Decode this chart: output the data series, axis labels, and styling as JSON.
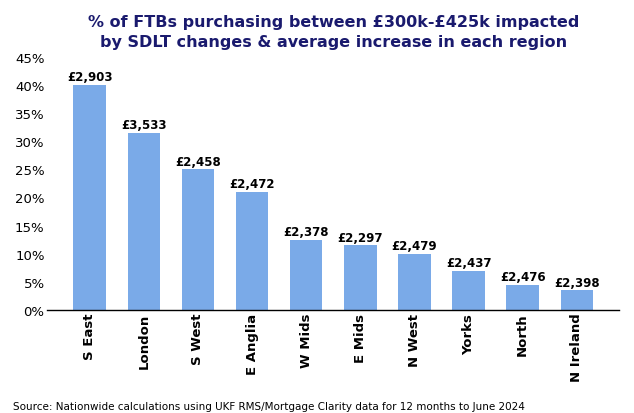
{
  "categories": [
    "S East",
    "London",
    "S West",
    "E Anglia",
    "W Mids",
    "E Mids",
    "N West",
    "Yorks",
    "North",
    "N Ireland"
  ],
  "values": [
    40.0,
    31.5,
    25.0,
    21.0,
    12.5,
    11.5,
    10.0,
    7.0,
    4.5,
    3.5
  ],
  "labels": [
    "£2,903",
    "£3,533",
    "£2,458",
    "£2,472",
    "£2,378",
    "£2,297",
    "£2,479",
    "£2,437",
    "£2,476",
    "£2,398"
  ],
  "bar_color": "#7aaae8",
  "title_line1": "% of FTBs purchasing between £300k-£425k impacted",
  "title_line2": "by SDLT changes & average increase in each region",
  "ylim": [
    0,
    45
  ],
  "yticks": [
    0,
    5,
    10,
    15,
    20,
    25,
    30,
    35,
    40,
    45
  ],
  "source": "Source: Nationwide calculations using UKF RMS/Mortgage Clarity data for 12 months to June 2024",
  "background_color": "#ffffff",
  "title_color": "#1a1a6e",
  "title_fontsize": 11.5,
  "tick_fontsize": 9.5,
  "label_fontsize": 8.5,
  "source_fontsize": 7.5,
  "bar_width": 0.6
}
